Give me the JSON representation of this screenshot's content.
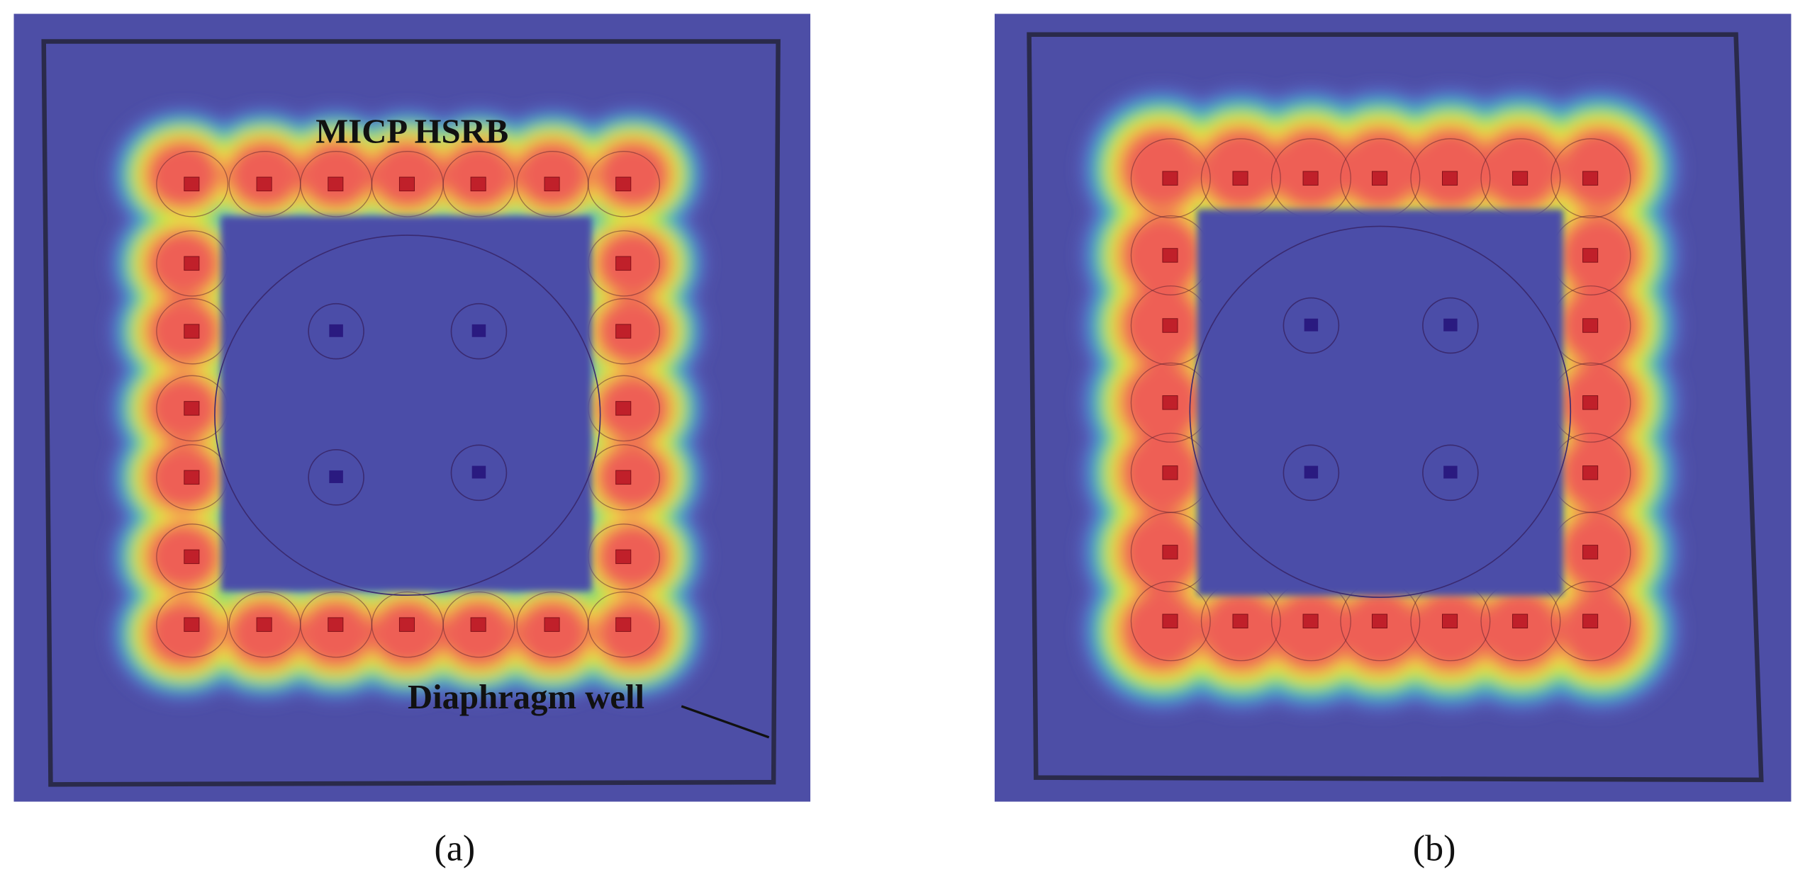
{
  "panels": [
    {
      "label": "(a)",
      "annotations": [
        "MICP HSRB",
        "Diaphragm well"
      ]
    },
    {
      "label": "(b)"
    }
  ]
}
